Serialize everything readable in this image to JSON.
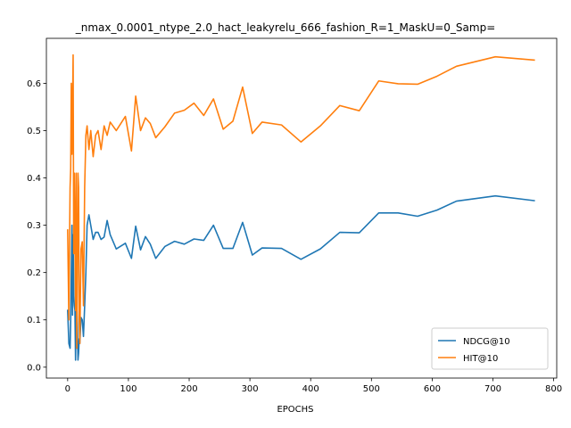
{
  "chart_data": {
    "type": "line",
    "title": "_nmax_0.0001_ntype_2.0_hact_leakyrelu_666_fashion_R=1_MaskU=0_Samp=",
    "xlabel": "EPOCHS",
    "ylabel": "",
    "xlim": [
      -35,
      805
    ],
    "ylim": [
      -0.023,
      0.695
    ],
    "xticks": [
      0,
      100,
      200,
      300,
      400,
      500,
      600,
      700,
      800
    ],
    "yticks": [
      0.0,
      0.1,
      0.2,
      0.3,
      0.4,
      0.5,
      0.6
    ],
    "grid": false,
    "legend_position": "lower-right",
    "series": [
      {
        "name": "NDCG@10",
        "color": "#1f77b4",
        "x": [
          0,
          2,
          4,
          5,
          6,
          7,
          8,
          9,
          10,
          11,
          12,
          13,
          14,
          15,
          16,
          17,
          18,
          19,
          20,
          22,
          24,
          26,
          28,
          30,
          32,
          35,
          38,
          42,
          46,
          50,
          55,
          60,
          65,
          70,
          80,
          95,
          105,
          112,
          120,
          128,
          136,
          145,
          160,
          176,
          192,
          208,
          224,
          240,
          256,
          272,
          288,
          304,
          320,
          352,
          384,
          416,
          448,
          480,
          512,
          544,
          576,
          608,
          640,
          704,
          768
        ],
        "y": [
          0.12,
          0.05,
          0.04,
          0.1,
          0.2,
          0.3,
          0.11,
          0.28,
          0.15,
          0.13,
          0.12,
          0.015,
          0.16,
          0.13,
          0.09,
          0.015,
          0.03,
          0.06,
          0.05,
          0.105,
          0.1,
          0.065,
          0.13,
          0.2,
          0.3,
          0.322,
          0.3,
          0.27,
          0.285,
          0.285,
          0.27,
          0.275,
          0.31,
          0.28,
          0.25,
          0.262,
          0.23,
          0.298,
          0.248,
          0.276,
          0.26,
          0.23,
          0.255,
          0.266,
          0.26,
          0.271,
          0.268,
          0.3,
          0.251,
          0.251,
          0.306,
          0.237,
          0.252,
          0.251,
          0.228,
          0.25,
          0.285,
          0.284,
          0.326,
          0.326,
          0.319,
          0.332,
          0.351,
          0.362,
          0.352
        ]
      },
      {
        "name": "HIT@10",
        "color": "#ff7f0e",
        "x": [
          0,
          2,
          3,
          4,
          5,
          6,
          7,
          8,
          9,
          10,
          11,
          12,
          13,
          14,
          15,
          16,
          17,
          18,
          19,
          20,
          22,
          24,
          26,
          28,
          30,
          32,
          35,
          38,
          42,
          46,
          50,
          55,
          60,
          65,
          70,
          80,
          95,
          105,
          112,
          120,
          128,
          136,
          145,
          160,
          176,
          192,
          208,
          224,
          240,
          256,
          272,
          288,
          304,
          320,
          352,
          384,
          416,
          448,
          480,
          512,
          544,
          576,
          608,
          640,
          704,
          768
        ],
        "y": [
          0.29,
          0.1,
          0.25,
          0.38,
          0.42,
          0.6,
          0.45,
          0.54,
          0.66,
          0.24,
          0.41,
          0.28,
          0.12,
          0.41,
          0.04,
          0.2,
          0.41,
          0.38,
          0.1,
          0.05,
          0.25,
          0.265,
          0.13,
          0.38,
          0.49,
          0.51,
          0.46,
          0.5,
          0.445,
          0.49,
          0.5,
          0.46,
          0.51,
          0.49,
          0.518,
          0.5,
          0.53,
          0.457,
          0.573,
          0.5,
          0.527,
          0.515,
          0.485,
          0.508,
          0.537,
          0.543,
          0.558,
          0.532,
          0.567,
          0.503,
          0.52,
          0.592,
          0.494,
          0.518,
          0.512,
          0.476,
          0.51,
          0.553,
          0.542,
          0.605,
          0.599,
          0.598,
          0.615,
          0.636,
          0.656,
          0.649
        ]
      }
    ]
  }
}
